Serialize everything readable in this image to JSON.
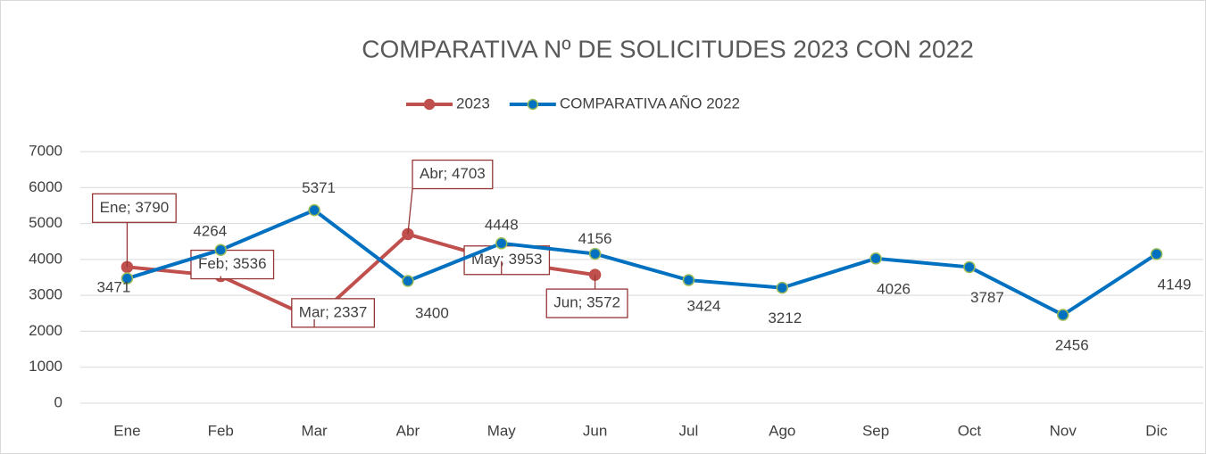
{
  "chart_data": {
    "type": "line",
    "title": "COMPARATIVA Nº DE SOLICITUDES 2023 CON 2022",
    "categories": [
      "Ene",
      "Feb",
      "Mar",
      "Abr",
      "May",
      "Jun",
      "Jul",
      "Ago",
      "Sep",
      "Oct",
      "Nov",
      "Dic"
    ],
    "series": [
      {
        "name": "2023",
        "color": "#c0504d",
        "values": [
          3790,
          3536,
          2337,
          4703,
          3953,
          3572,
          null,
          null,
          null,
          null,
          null,
          null
        ],
        "value_labels": [
          "Ene; 3790",
          "Feb; 3536",
          "Mar; 2337",
          "Abr; 4703",
          "May; 3953",
          "Jun; 3572",
          null,
          null,
          null,
          null,
          null,
          null
        ]
      },
      {
        "name": "COMPARATIVA AÑO 2022",
        "color": "#0070c0",
        "values": [
          3471,
          4264,
          5371,
          3400,
          4448,
          4156,
          3424,
          3212,
          4026,
          3787,
          2456,
          4149
        ]
      }
    ],
    "ylim": [
      0,
      7000
    ],
    "yticks": [
      0,
      1000,
      2000,
      3000,
      4000,
      5000,
      6000,
      7000
    ],
    "grid": true,
    "legend": "top"
  }
}
